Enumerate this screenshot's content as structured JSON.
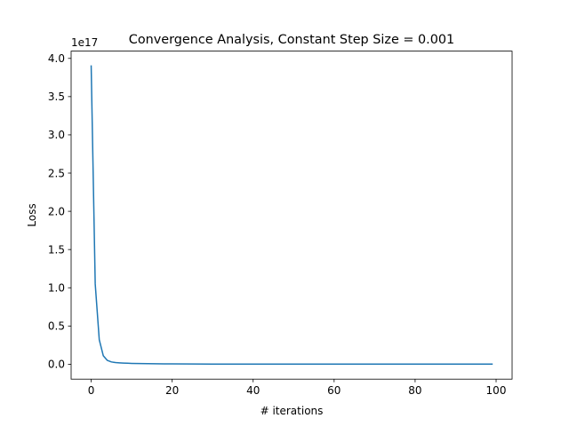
{
  "chart_data": {
    "type": "line",
    "title": "Convergence Analysis, Constant Step Size = 0.001",
    "xlabel": "# iterations",
    "ylabel": "Loss",
    "y_offset_label": "1e17",
    "xlim": [
      -4.95,
      103.95
    ],
    "ylim": [
      -0.195,
      4.095
    ],
    "grid": false,
    "x_ticks": [
      0,
      20,
      40,
      60,
      80,
      100
    ],
    "x_tick_labels": [
      "0",
      "20",
      "40",
      "60",
      "80",
      "100"
    ],
    "y_ticks": [
      0.0,
      0.5,
      1.0,
      1.5,
      2.0,
      2.5,
      3.0,
      3.5,
      4.0
    ],
    "y_tick_labels": [
      "0.0",
      "0.5",
      "1.0",
      "1.5",
      "2.0",
      "2.5",
      "3.0",
      "3.5",
      "4.0"
    ],
    "series": [
      {
        "color": "#1f77b4",
        "x": [
          0,
          1,
          2,
          3,
          4,
          5,
          6,
          7,
          8,
          9,
          10,
          12,
          14,
          16,
          18,
          20,
          25,
          30,
          40,
          50,
          60,
          70,
          80,
          90,
          99
        ],
        "y": [
          3.9,
          1.05,
          0.32,
          0.11,
          0.05,
          0.03,
          0.022,
          0.018,
          0.015,
          0.013,
          0.011,
          0.009,
          0.007,
          0.006,
          0.005,
          0.004,
          0.003,
          0.002,
          0.0015,
          0.001,
          0.001,
          0.001,
          0.001,
          0.001,
          0.001
        ]
      }
    ]
  }
}
